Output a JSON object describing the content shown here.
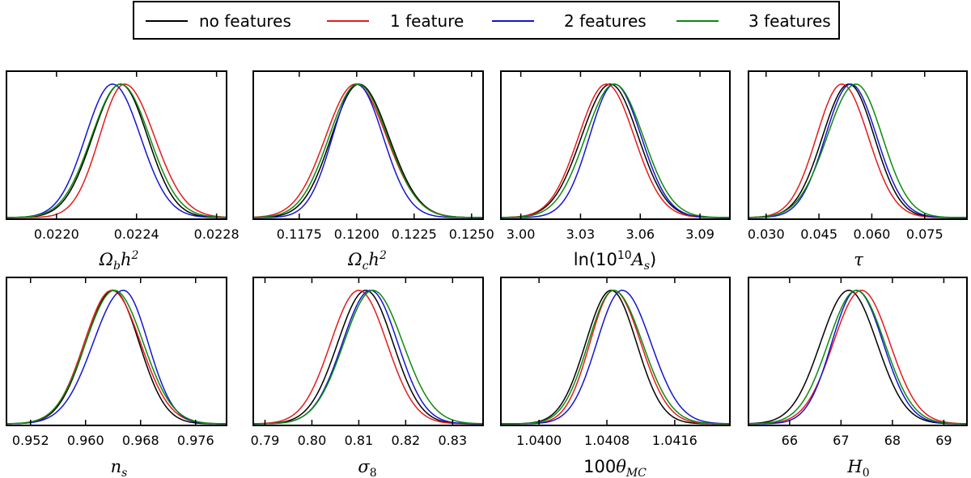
{
  "legend": {
    "placement": "top-center",
    "entries": [
      {
        "label": "no features",
        "color": "#000000"
      },
      {
        "label": "1 feature",
        "color": "#e8191a"
      },
      {
        "label": "2 features",
        "color": "#1414d2"
      },
      {
        "label": "3 features",
        "color": "#0b8a0b"
      }
    ]
  },
  "chart_data": [
    {
      "type": "line",
      "xlabel": "Ω_b h²",
      "xlim": [
        0.02175,
        0.02285
      ],
      "ticks": [
        0.022,
        0.0224,
        0.0228
      ],
      "tick_labels": [
        "0.0220",
        "0.0224",
        "0.0228"
      ],
      "series": [
        {
          "mu": 0.02232,
          "sl": 0.00014,
          "sr": 0.000135,
          "peak": 1.0
        },
        {
          "mu": 0.02234,
          "sl": 0.000125,
          "sr": 0.00015,
          "peak": 1.0
        },
        {
          "mu": 0.02228,
          "sl": 0.000135,
          "sr": 0.00014,
          "peak": 1.0
        },
        {
          "mu": 0.02232,
          "sl": 0.000145,
          "sr": 0.000145,
          "peak": 1.0
        }
      ]
    },
    {
      "type": "line",
      "xlabel": "Ω_c h²",
      "xlim": [
        0.1155,
        0.1255
      ],
      "ticks": [
        0.1175,
        0.12,
        0.1225,
        0.125
      ],
      "tick_labels": [
        "0.1175",
        "0.1200",
        "0.1225",
        "0.1250"
      ],
      "series": [
        {
          "mu": 0.1201,
          "sl": 0.0012,
          "sr": 0.0013,
          "peak": 1.0
        },
        {
          "mu": 0.11995,
          "sl": 0.0013,
          "sr": 0.00135,
          "peak": 1.0
        },
        {
          "mu": 0.12,
          "sl": 0.00105,
          "sr": 0.00115,
          "peak": 1.0
        },
        {
          "mu": 0.12005,
          "sl": 0.00125,
          "sr": 0.0013,
          "peak": 1.0
        }
      ]
    },
    {
      "type": "line",
      "xlabel": "ln(10¹⁰A_s)",
      "xlim": [
        2.99,
        3.105
      ],
      "ticks": [
        3.0,
        3.03,
        3.06,
        3.09
      ],
      "tick_labels": [
        "3.00",
        "3.03",
        "3.06",
        "3.09"
      ],
      "series": [
        {
          "mu": 3.045,
          "sl": 0.0145,
          "sr": 0.014,
          "peak": 1.0
        },
        {
          "mu": 3.043,
          "sl": 0.014,
          "sr": 0.014,
          "peak": 1.0
        },
        {
          "mu": 3.047,
          "sl": 0.0125,
          "sr": 0.0135,
          "peak": 1.0
        },
        {
          "mu": 3.047,
          "sl": 0.0145,
          "sr": 0.0145,
          "peak": 1.0
        }
      ]
    },
    {
      "type": "line",
      "xlabel": "τ",
      "xlim": [
        0.025,
        0.087
      ],
      "ticks": [
        0.03,
        0.045,
        0.06,
        0.075
      ],
      "tick_labels": [
        "0.030",
        "0.045",
        "0.060",
        "0.075"
      ],
      "series": [
        {
          "mu": 0.0535,
          "sl": 0.0075,
          "sr": 0.0072,
          "peak": 1.0
        },
        {
          "mu": 0.0515,
          "sl": 0.0072,
          "sr": 0.0075,
          "peak": 1.0
        },
        {
          "mu": 0.054,
          "sl": 0.0072,
          "sr": 0.0074,
          "peak": 1.0
        },
        {
          "mu": 0.0555,
          "sl": 0.0082,
          "sr": 0.0075,
          "peak": 1.0
        }
      ]
    },
    {
      "type": "line",
      "xlabel": "n_s",
      "xlim": [
        0.9485,
        0.9805
      ],
      "ticks": [
        0.952,
        0.96,
        0.968,
        0.976
      ],
      "tick_labels": [
        "0.952",
        "0.960",
        "0.968",
        "0.976"
      ],
      "series": [
        {
          "mu": 0.964,
          "sl": 0.004,
          "sr": 0.0038,
          "peak": 1.0
        },
        {
          "mu": 0.9638,
          "sl": 0.004,
          "sr": 0.0042,
          "peak": 1.0
        },
        {
          "mu": 0.9655,
          "sl": 0.0044,
          "sr": 0.0036,
          "peak": 1.0
        },
        {
          "mu": 0.9642,
          "sl": 0.0042,
          "sr": 0.0042,
          "peak": 1.0
        }
      ]
    },
    {
      "type": "line",
      "xlabel": "σ_8",
      "xlim": [
        0.7875,
        0.8365
      ],
      "ticks": [
        0.79,
        0.8,
        0.81,
        0.82,
        0.83
      ],
      "tick_labels": [
        "0.79",
        "0.80",
        "0.81",
        "0.82",
        "0.83"
      ],
      "series": [
        {
          "mu": 0.8115,
          "sl": 0.006,
          "sr": 0.0058,
          "peak": 1.0
        },
        {
          "mu": 0.81,
          "sl": 0.006,
          "sr": 0.006,
          "peak": 1.0
        },
        {
          "mu": 0.8125,
          "sl": 0.006,
          "sr": 0.0058,
          "peak": 1.0
        },
        {
          "mu": 0.813,
          "sl": 0.0062,
          "sr": 0.0064,
          "peak": 1.0
        }
      ]
    },
    {
      "type": "line",
      "xlabel": "100θ_MC",
      "xlim": [
        1.03955,
        1.04225
      ],
      "ticks": [
        1.04,
        1.0408,
        1.0416
      ],
      "tick_labels": [
        "1.0400",
        "1.0408",
        "1.0416"
      ],
      "series": [
        {
          "mu": 1.04085,
          "sl": 0.0003,
          "sr": 0.0003,
          "peak": 1.0
        },
        {
          "mu": 1.04088,
          "sl": 0.00028,
          "sr": 0.00032,
          "peak": 1.0
        },
        {
          "mu": 1.04098,
          "sl": 0.0003,
          "sr": 0.00034,
          "peak": 1.0
        },
        {
          "mu": 1.04088,
          "sl": 0.0003,
          "sr": 0.00034,
          "peak": 1.0
        }
      ]
    },
    {
      "type": "line",
      "xlabel": "H_0",
      "xlim": [
        65.2,
        69.45
      ],
      "ticks": [
        66,
        67,
        68,
        69
      ],
      "tick_labels": [
        "66",
        "67",
        "68",
        "69"
      ],
      "series": [
        {
          "mu": 67.15,
          "sl": 0.55,
          "sr": 0.55,
          "peak": 1.0
        },
        {
          "mu": 67.4,
          "sl": 0.55,
          "sr": 0.55,
          "peak": 1.0
        },
        {
          "mu": 67.3,
          "sl": 0.48,
          "sr": 0.52,
          "peak": 1.0
        },
        {
          "mu": 67.3,
          "sl": 0.55,
          "sr": 0.55,
          "peak": 1.0
        }
      ]
    }
  ]
}
